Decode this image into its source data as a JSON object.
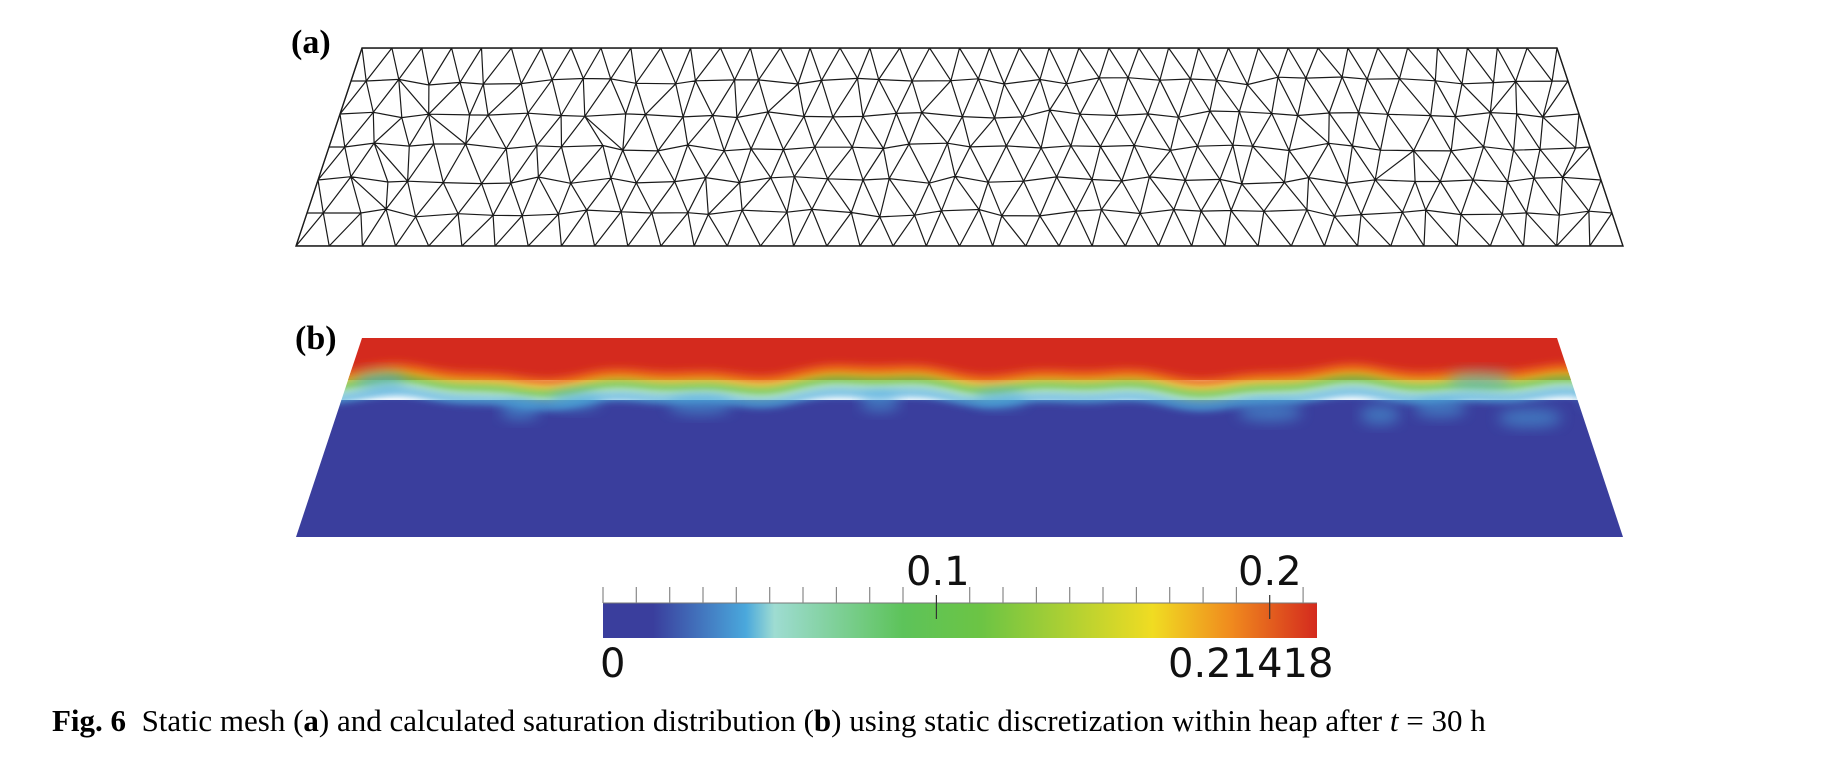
{
  "panels": {
    "a_label": "(a)",
    "b_label": "(b)"
  },
  "colorbar": {
    "min_label": "0",
    "max_label": "0.21418",
    "tick_labels": [
      "0.1",
      "0.2"
    ],
    "min": 0,
    "max": 0.21418,
    "colormap_stops": [
      "#3a3e9d",
      "#3a3e9d",
      "#4aa8dc",
      "#9edcd2",
      "#5dc35a",
      "#6cc444",
      "#f0dc22",
      "#f08a1e",
      "#d42a1e"
    ]
  },
  "saturation_field": {
    "top_color": "#d42a1e",
    "bottom_color": "#3a3e9d"
  },
  "caption": {
    "fig": "Fig. 6",
    "text1": "Static mesh (",
    "a": "a",
    "text2": ") and calculated saturation distribution (",
    "b": "b",
    "text3": ") using static discretization within heap after ",
    "t": "t",
    "text4": " = 30 h"
  }
}
